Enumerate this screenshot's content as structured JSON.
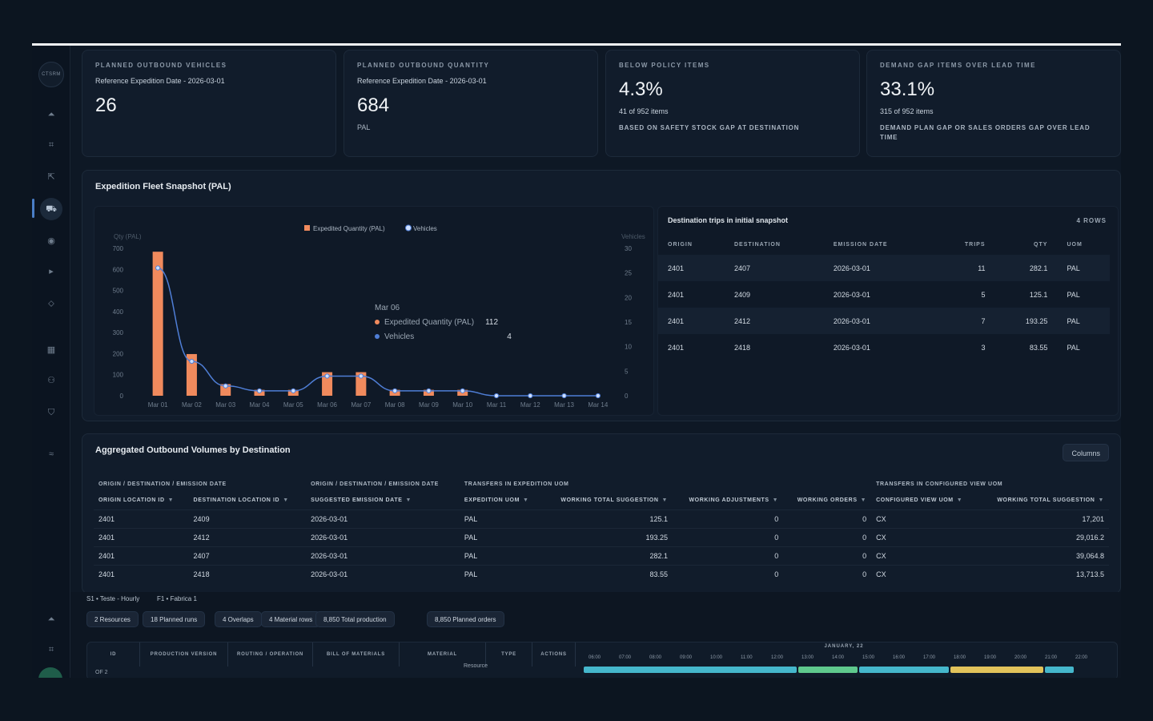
{
  "sidebar": {
    "logo": "CTSRM",
    "items": [
      {
        "icon": "upload-icon",
        "glyph": "⏶"
      },
      {
        "icon": "org-icon",
        "glyph": "⌗"
      },
      {
        "icon": "export-icon",
        "glyph": "⇱"
      },
      {
        "icon": "truck-icon",
        "glyph": "⛟"
      },
      {
        "icon": "eye-icon",
        "glyph": "◉"
      },
      {
        "icon": "play-icon",
        "glyph": "▸"
      },
      {
        "icon": "tag-icon",
        "glyph": "⬦"
      },
      {
        "icon": "calendar-icon",
        "glyph": "▦"
      },
      {
        "icon": "people-icon",
        "glyph": "⚇"
      },
      {
        "icon": "shield-icon",
        "glyph": "⛉"
      },
      {
        "icon": "chart-icon",
        "glyph": "≈"
      },
      {
        "icon": "upload-icon",
        "glyph": "⏶"
      },
      {
        "icon": "org-icon",
        "glyph": "⌗"
      }
    ]
  },
  "kpis": [
    {
      "title": "Planned outbound vehicles",
      "sub": "Reference Expedition Date - 2026-03-01",
      "value": "26",
      "unit": ""
    },
    {
      "title": "Planned outbound quantity",
      "sub": "Reference Expedition Date - 2026-03-01",
      "value": "684",
      "unit": "PAL"
    },
    {
      "title": "Below policy items",
      "value": "4.3%",
      "items": "41 of 952 items",
      "note": "Based on safety stock gap at destination"
    },
    {
      "title": "Demand gap items over lead time",
      "value": "33.1%",
      "items": "315 of 952 items",
      "note": "Demand plan gap or sales orders gap over lead time"
    }
  ],
  "fleet": {
    "title": "Expedition Fleet Snapshot (PAL)",
    "tooltip": {
      "date": "Mar 06",
      "series1": "Expedited Quantity (PAL)",
      "value1": "112",
      "series2": "Vehicles",
      "value2": "4"
    }
  },
  "chart_data": {
    "type": "bar",
    "categories": [
      "Mar 01",
      "Mar 02",
      "Mar 03",
      "Mar 04",
      "Mar 05",
      "Mar 06",
      "Mar 07",
      "Mar 08",
      "Mar 09",
      "Mar 10",
      "Mar 11",
      "Mar 12",
      "Mar 13",
      "Mar 14"
    ],
    "series": [
      {
        "name": "Expedited Quantity (PAL)",
        "type": "bar",
        "axis": "left",
        "color": "#f08a5d",
        "values": [
          684,
          198,
          55,
          28,
          28,
          112,
          112,
          28,
          28,
          28,
          0,
          0,
          0,
          0
        ]
      },
      {
        "name": "Vehicles",
        "type": "line",
        "axis": "right",
        "color": "#4f7ed6",
        "values": [
          26,
          7,
          2,
          1,
          1,
          4,
          4,
          1,
          1,
          1,
          0,
          0,
          0,
          0
        ]
      }
    ],
    "ylabel": "Qty (PAL)",
    "y2label": "Vehicles",
    "ylim": [
      0,
      700
    ],
    "yticks": [
      0,
      100,
      200,
      300,
      400,
      500,
      600,
      700
    ],
    "y2lim": [
      0,
      30
    ],
    "y2ticks": [
      0,
      5,
      10,
      15,
      20,
      25,
      30
    ],
    "legend": "top-center"
  },
  "destinations": {
    "title": "Destination trips in initial snapshot",
    "rows_label": "4 ROWS",
    "headers": [
      "Origin",
      "Destination",
      "Emission date",
      "Trips",
      "Qty",
      "UOM"
    ],
    "rows": [
      [
        "2401",
        "2407",
        "2026-03-01",
        "11",
        "282.1",
        "PAL"
      ],
      [
        "2401",
        "2409",
        "2026-03-01",
        "5",
        "125.1",
        "PAL"
      ],
      [
        "2401",
        "2412",
        "2026-03-01",
        "7",
        "193.25",
        "PAL"
      ],
      [
        "2401",
        "2418",
        "2026-03-01",
        "3",
        "83.55",
        "PAL"
      ]
    ]
  },
  "aggregated": {
    "title": "Aggregated Outbound Volumes by Destination",
    "columns_button": "Columns",
    "groups": [
      "Origin / Destination / Emission date",
      "Origin / Destination / Emission date",
      "Transfers in expedition UOM",
      "Transfers in configured view UOM"
    ],
    "headers": [
      "Origin location ID",
      "Destination location ID",
      "Suggested emission date",
      "Expedition UOM",
      "Working total suggestion",
      "Working adjustments",
      "Working orders",
      "Configured view UOM",
      "Working total suggestion"
    ],
    "rows": [
      [
        "2401",
        "2409",
        "2026-03-01",
        "PAL",
        "125.1",
        "0",
        "0",
        "CX",
        "17,201"
      ],
      [
        "2401",
        "2412",
        "2026-03-01",
        "PAL",
        "193.25",
        "0",
        "0",
        "CX",
        "29,016.2"
      ],
      [
        "2401",
        "2407",
        "2026-03-01",
        "PAL",
        "282.1",
        "0",
        "0",
        "CX",
        "39,064.8"
      ],
      [
        "2401",
        "2418",
        "2026-03-01",
        "PAL",
        "83.55",
        "0",
        "0",
        "CX",
        "13,713.5"
      ]
    ]
  },
  "production": {
    "label1": "S1 • Teste - Hourly",
    "label2": "F1 • Fabrica 1",
    "chips": [
      "2 Resources",
      "18 Planned runs",
      "4 Overlaps",
      "4 Material rows",
      "8,850 Total production",
      "8,850 Planned orders"
    ],
    "columns": [
      "ID",
      "Production version",
      "Routing / Operation",
      "Bill of materials",
      "Material",
      "Type",
      "Actions"
    ],
    "date": "JANUARY, 22",
    "hours": [
      "06:00",
      "07:00",
      "08:00",
      "09:00",
      "10:00",
      "11:00",
      "12:00",
      "13:00",
      "14:00",
      "15:00",
      "16:00",
      "17:00",
      "18:00",
      "19:00",
      "20:00",
      "21:00",
      "22:00"
    ],
    "first_row": {
      "id": "OF 2",
      "type": "Resource"
    }
  }
}
